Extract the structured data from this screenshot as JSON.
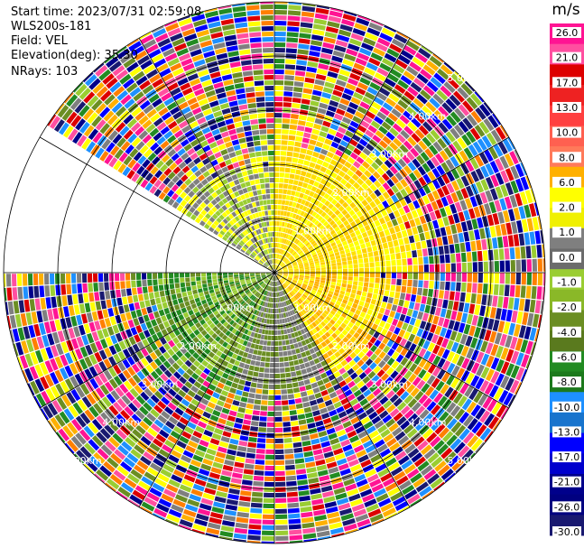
{
  "header": {
    "start_time": "Start time: 2023/07/31 02:59:08",
    "instrument": "WLS200s-181",
    "field": "Field: VEL",
    "elevation": "Elevation(deg): 35.30",
    "nrays": "NRays: 103"
  },
  "chart_data": {
    "type": "heatmap",
    "projection": "polar-ppi",
    "field": "VEL",
    "units": "m/s",
    "elevation_deg": 35.3,
    "n_rays": 103,
    "range_max_km": 5.0,
    "range_rings_km": [
      1.0,
      2.0,
      3.0,
      4.0,
      5.0
    ],
    "range_ring_labels": [
      "1.00km",
      "2.00km",
      "3.00km",
      "4.00km",
      "5.00km"
    ],
    "azimuth_spokes_deg": [
      0,
      30,
      60,
      90,
      120,
      150,
      180,
      210,
      240,
      270,
      300,
      330
    ],
    "scan_gap_azimuth_deg": [
      270,
      303
    ],
    "colorbar": {
      "title": "m/s",
      "ticks": [
        "26.0",
        "21.0",
        "17.0",
        "13.0",
        "10.0",
        "8.0",
        "6.0",
        "2.0",
        "1.0",
        "0.0",
        "-1.0",
        "-2.0",
        "-4.0",
        "-6.0",
        "-8.0",
        "-10.0",
        "-13.0",
        "-17.0",
        "-21.0",
        "-26.0",
        "-30.0"
      ],
      "colors": [
        "#ff1493",
        "#ff4fa0",
        "#dd0000",
        "#ee2222",
        "#ff4040",
        "#ff6050",
        "#ff7a5a",
        "#ffb000",
        "#ffff00",
        "#f0f000",
        "#7f7f7f",
        "#6b6b6b",
        "#9acd32",
        "#8ab828",
        "#6b8e23",
        "#5a7a1e",
        "#228b22",
        "#1c7a1c",
        "#1e90ff",
        "#1874cd",
        "#0000ff",
        "#0000cd",
        "#00008b",
        "#000080",
        "#191970"
      ]
    },
    "regions": [
      {
        "az_start": 0,
        "az_end": 90,
        "r_max_km": 2.6,
        "value_class": "positive_low",
        "colors": [
          "#ffff00",
          "#ffe000",
          "#ffd000"
        ]
      },
      {
        "az_start": 90,
        "az_end": 150,
        "r_max_km": 2.2,
        "value_class": "positive_low",
        "colors": [
          "#ffff00",
          "#ffd700",
          "#ffb000"
        ]
      },
      {
        "az_start": 150,
        "az_end": 200,
        "r_max_km": 2.3,
        "value_class": "near_zero",
        "colors": [
          "#7f7f7f",
          "#6b8e23"
        ]
      },
      {
        "az_start": 200,
        "az_end": 270,
        "r_max_km": 2.5,
        "value_class": "negative_low",
        "colors": [
          "#9acd32",
          "#6b8e23",
          "#228b22"
        ]
      },
      {
        "az_start": 303,
        "az_end": 360,
        "r_max_km": 2.2,
        "value_class": "negative_low",
        "colors": [
          "#9acd32",
          "#7f7f7f",
          "#ffff00"
        ]
      }
    ],
    "noise_colors": [
      "#ff1493",
      "#dd0000",
      "#ff7f00",
      "#ffff00",
      "#7f7f7f",
      "#9acd32",
      "#6b8e23",
      "#228b22",
      "#1e90ff",
      "#0000ff",
      "#00008b",
      "#ff4fa0",
      "#ffb000",
      "#191970"
    ]
  }
}
